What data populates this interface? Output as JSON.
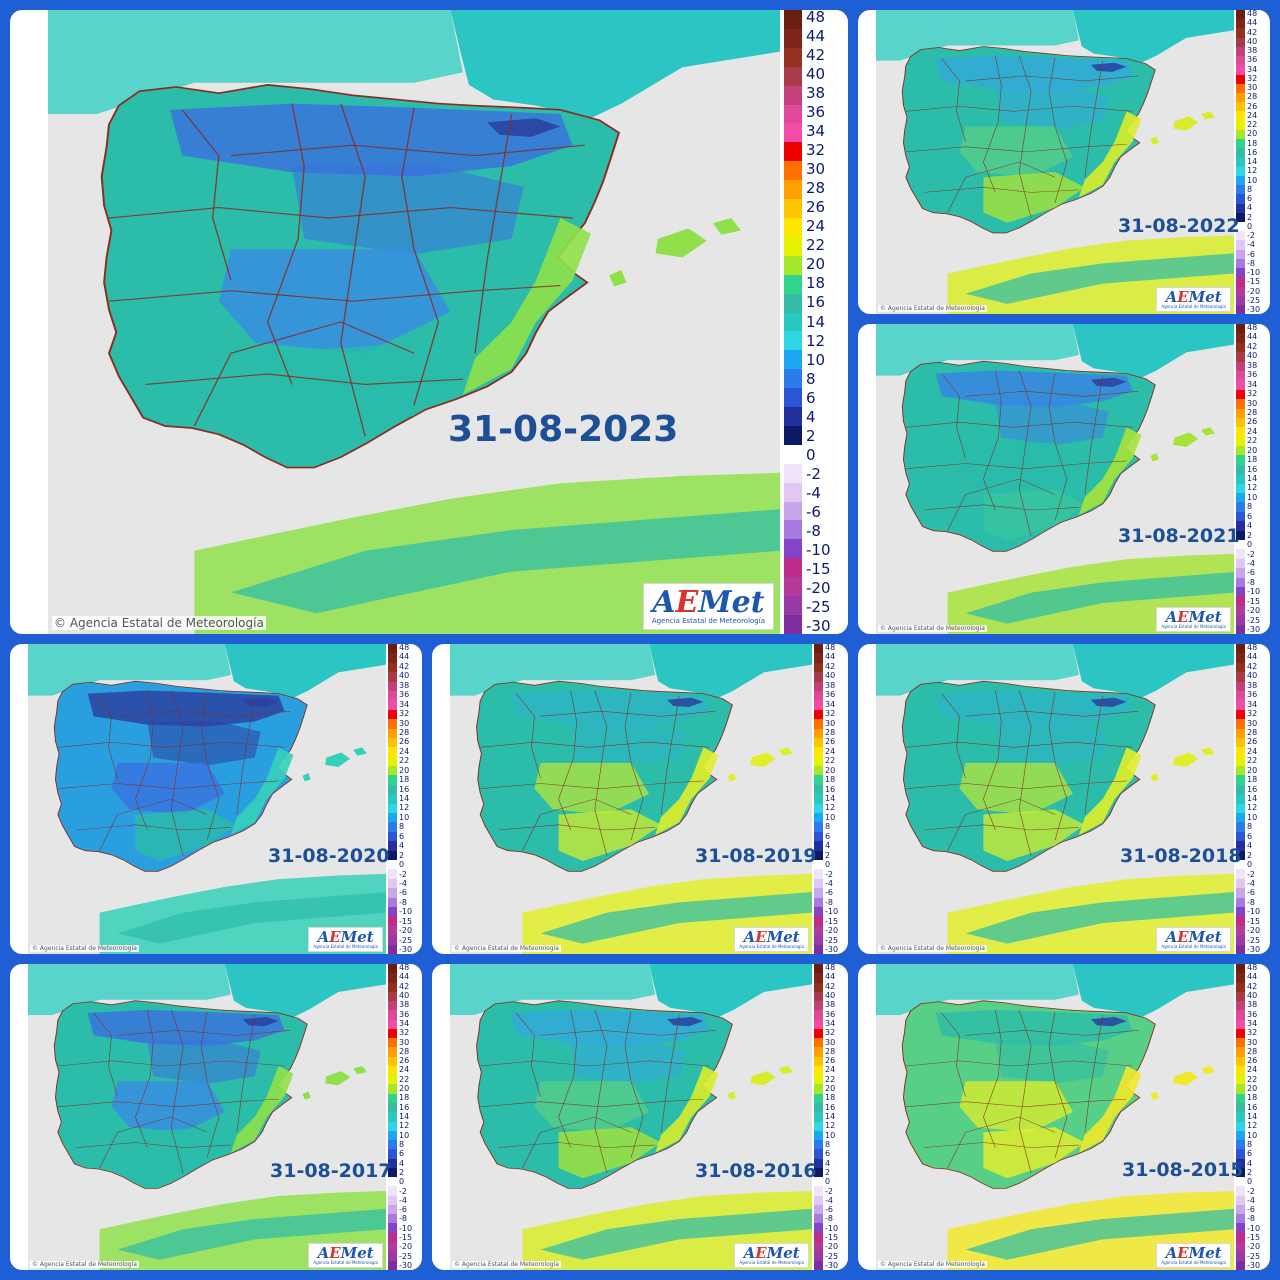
{
  "layout_grid": "collage-3x3",
  "panels": [
    {
      "date": "31-08-2023",
      "tone": "cool",
      "size": "large"
    },
    {
      "date": "31-08-2022",
      "tone": "mild"
    },
    {
      "date": "31-08-2021",
      "tone": "cool-mild"
    },
    {
      "date": "31-08-2020",
      "tone": "cold"
    },
    {
      "date": "31-08-2019",
      "tone": "warm"
    },
    {
      "date": "31-08-2018",
      "tone": "warm"
    },
    {
      "date": "31-08-2017",
      "tone": "cool"
    },
    {
      "date": "31-08-2016",
      "tone": "mild"
    },
    {
      "date": "31-08-2015",
      "tone": "hot"
    }
  ],
  "colorbar": {
    "labels": [
      "48",
      "44",
      "42",
      "40",
      "38",
      "36",
      "34",
      "32",
      "30",
      "28",
      "26",
      "24",
      "22",
      "20",
      "18",
      "16",
      "14",
      "12",
      "10",
      "8",
      "6",
      "4",
      "2",
      "0",
      "-2",
      "-4",
      "-6",
      "-8",
      "-10",
      "-15",
      "-20",
      "-25",
      "-30"
    ],
    "colors": [
      "#6b1d12",
      "#7e2418",
      "#93301f",
      "#a83b4a",
      "#c4407a",
      "#e0489a",
      "#f04ca8",
      "#ee0000",
      "#ff7000",
      "#ff9f00",
      "#ffc400",
      "#ffe600",
      "#e6f200",
      "#a6e62b",
      "#2fd58b",
      "#35bba8",
      "#29c9c2",
      "#2fd6e6",
      "#1ca8f0",
      "#2a7de8",
      "#2a55d4",
      "#22309e",
      "#0c1a66",
      "#ffffff",
      "#f0e4f8",
      "#e0c8f2",
      "#c8a6ec",
      "#a77ae0",
      "#8544c8",
      "#c02c8a",
      "#b43a9a",
      "#9a3aa6",
      "#7e2e9e"
    ]
  },
  "credit": "Agencia Estatal de Meteorología",
  "logo": {
    "brand_prefix": "A",
    "brand_accent": "E",
    "brand_suffix": "Met",
    "subtitle": "Agencia Estatal de Meteorología"
  },
  "map_colors": {
    "sea": "#e6e6e6",
    "sea_warm": "#3ed0c4",
    "land_base": "#2bbcaa",
    "border": "#8a2c1e",
    "cold": "#3b6fe0",
    "very_cold": "#2b3f9e",
    "warm": "#a6e33a",
    "hot": "#e8ee2a"
  }
}
